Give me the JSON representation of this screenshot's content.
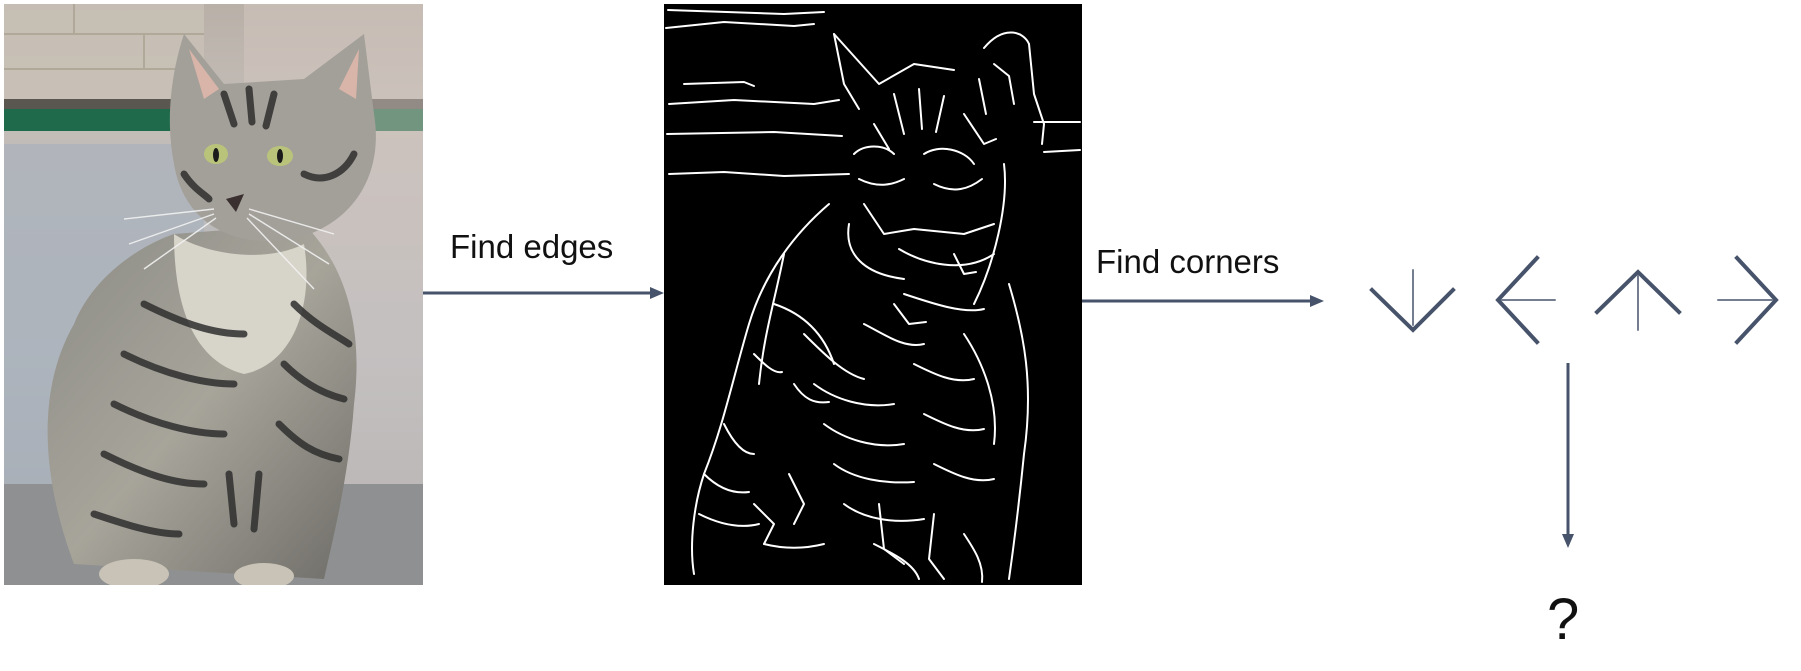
{
  "steps": {
    "find_edges_label": "Find edges",
    "find_corners_label": "Find corners"
  },
  "result": {
    "unknown_label": "?"
  },
  "corner_icons": [
    "arrow-down-icon",
    "arrow-left-icon",
    "arrow-up-icon",
    "arrow-right-icon"
  ],
  "colors": {
    "arrow": "#46536a",
    "edge_background": "#000000",
    "edge_lines": "#ffffff"
  }
}
